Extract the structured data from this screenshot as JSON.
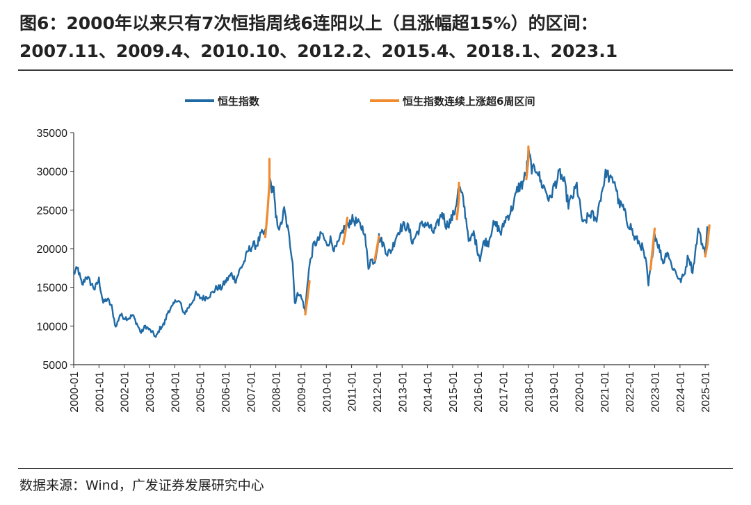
{
  "title": {
    "line1": "图6：2000年以来只有7次恒指周线6连阳以上（且涨幅超15%）的区间：",
    "line2": "2007.11、2009.4、2010.10、2012.2、2015.4、2018.1、2023.1"
  },
  "source": "数据来源：Wind，广发证券发展研究中心",
  "colors": {
    "main": "#1f6aa5",
    "highlight": "#f28a2e",
    "axis": "#333333"
  },
  "chart_data": {
    "type": "line",
    "title": "",
    "xlabel": "",
    "ylabel": "",
    "ylim": [
      5000,
      35000
    ],
    "yticks": [
      "5000",
      "10000",
      "15000",
      "20000",
      "25000",
      "30000",
      "35000"
    ],
    "xlim": [
      "2000-01",
      "2025-03"
    ],
    "xticks": [
      "2000-01",
      "2001-01",
      "2002-01",
      "2003-01",
      "2004-01",
      "2005-01",
      "2006-01",
      "2007-01",
      "2008-01",
      "2009-01",
      "2010-01",
      "2011-01",
      "2012-01",
      "2013-01",
      "2014-01",
      "2015-01",
      "2016-01",
      "2017-01",
      "2018-01",
      "2019-01",
      "2020-01",
      "2021-01",
      "2022-01",
      "2023-01",
      "2024-01",
      "2025-01"
    ],
    "legend": {
      "placement": "top",
      "items": [
        "恒生指数",
        "恒生指数连续上涨超6周区间"
      ]
    },
    "series": [
      {
        "name": "恒生指数",
        "points": [
          [
            "2000-01",
            16800
          ],
          [
            "2000-03",
            17400
          ],
          [
            "2000-05",
            15200
          ],
          [
            "2000-07",
            16500
          ],
          [
            "2000-09",
            15600
          ],
          [
            "2000-11",
            14800
          ],
          [
            "2001-01",
            16000
          ],
          [
            "2001-03",
            13000
          ],
          [
            "2001-05",
            13500
          ],
          [
            "2001-07",
            12500
          ],
          [
            "2001-09",
            9800
          ],
          [
            "2001-11",
            11500
          ],
          [
            "2002-01",
            11100
          ],
          [
            "2002-03",
            11000
          ],
          [
            "2002-05",
            11400
          ],
          [
            "2002-07",
            10300
          ],
          [
            "2002-09",
            9100
          ],
          [
            "2002-11",
            10000
          ],
          [
            "2003-01",
            9500
          ],
          [
            "2003-03",
            9000
          ],
          [
            "2003-04",
            8500
          ],
          [
            "2003-06",
            9700
          ],
          [
            "2003-08",
            10300
          ],
          [
            "2003-10",
            12000
          ],
          [
            "2003-12",
            12500
          ],
          [
            "2004-02",
            13500
          ],
          [
            "2004-04",
            12800
          ],
          [
            "2004-05",
            11500
          ],
          [
            "2004-07",
            12200
          ],
          [
            "2004-09",
            13000
          ],
          [
            "2004-11",
            14100
          ],
          [
            "2005-01",
            13700
          ],
          [
            "2005-03",
            13600
          ],
          [
            "2005-05",
            13900
          ],
          [
            "2005-07",
            14300
          ],
          [
            "2005-09",
            15000
          ],
          [
            "2005-11",
            14900
          ],
          [
            "2006-01",
            15700
          ],
          [
            "2006-04",
            16700
          ],
          [
            "2006-06",
            15900
          ],
          [
            "2006-08",
            17300
          ],
          [
            "2006-10",
            18300
          ],
          [
            "2006-12",
            19800
          ],
          [
            "2007-02",
            20400
          ],
          [
            "2007-04",
            20500
          ],
          [
            "2007-06",
            21800
          ],
          [
            "2007-08",
            22000
          ],
          [
            "2007-09",
            24500
          ],
          [
            "2007-10",
            28500
          ],
          [
            "2007-11",
            28000
          ],
          [
            "2007-12",
            27500
          ],
          [
            "2008-01",
            24000
          ],
          [
            "2008-03",
            22500
          ],
          [
            "2008-05",
            25000
          ],
          [
            "2008-07",
            22000
          ],
          [
            "2008-09",
            18500
          ],
          [
            "2008-10",
            13000
          ],
          [
            "2008-11",
            13800
          ],
          [
            "2008-12",
            14400
          ],
          [
            "2009-02",
            13000
          ],
          [
            "2009-03",
            11800
          ],
          [
            "2009-04",
            15500
          ],
          [
            "2009-05",
            17800
          ],
          [
            "2009-07",
            20500
          ],
          [
            "2009-09",
            21000
          ],
          [
            "2009-11",
            22000
          ],
          [
            "2010-01",
            20500
          ],
          [
            "2010-03",
            21200
          ],
          [
            "2010-05",
            19800
          ],
          [
            "2010-07",
            20800
          ],
          [
            "2010-09",
            22500
          ],
          [
            "2010-11",
            23000
          ],
          [
            "2011-01",
            23800
          ],
          [
            "2011-03",
            23500
          ],
          [
            "2011-05",
            23000
          ],
          [
            "2011-07",
            22400
          ],
          [
            "2011-09",
            17600
          ],
          [
            "2011-10",
            18500
          ],
          [
            "2011-12",
            18400
          ],
          [
            "2012-02",
            21500
          ],
          [
            "2012-04",
            20600
          ],
          [
            "2012-06",
            19400
          ],
          [
            "2012-08",
            19800
          ],
          [
            "2012-10",
            21500
          ],
          [
            "2012-12",
            22600
          ],
          [
            "2013-02",
            23000
          ],
          [
            "2013-04",
            22700
          ],
          [
            "2013-06",
            20800
          ],
          [
            "2013-08",
            22000
          ],
          [
            "2013-10",
            23000
          ],
          [
            "2013-12",
            23300
          ],
          [
            "2014-02",
            22800
          ],
          [
            "2014-04",
            22100
          ],
          [
            "2014-06",
            23200
          ],
          [
            "2014-08",
            24700
          ],
          [
            "2014-10",
            23000
          ],
          [
            "2014-12",
            23600
          ],
          [
            "2015-02",
            24800
          ],
          [
            "2015-04",
            28000
          ],
          [
            "2015-06",
            26300
          ],
          [
            "2015-07",
            24500
          ],
          [
            "2015-09",
            20800
          ],
          [
            "2015-11",
            22000
          ],
          [
            "2016-01",
            19700
          ],
          [
            "2016-02",
            18800
          ],
          [
            "2016-04",
            21000
          ],
          [
            "2016-06",
            20800
          ],
          [
            "2016-08",
            23000
          ],
          [
            "2016-10",
            23000
          ],
          [
            "2016-12",
            22000
          ],
          [
            "2017-02",
            23800
          ],
          [
            "2017-04",
            24500
          ],
          [
            "2017-06",
            25800
          ],
          [
            "2017-08",
            27900
          ],
          [
            "2017-10",
            28300
          ],
          [
            "2017-12",
            29800
          ],
          [
            "2018-01",
            32500
          ],
          [
            "2018-03",
            30000
          ],
          [
            "2018-05",
            30500
          ],
          [
            "2018-07",
            28500
          ],
          [
            "2018-09",
            27700
          ],
          [
            "2018-11",
            26200
          ],
          [
            "2019-01",
            27900
          ],
          [
            "2019-04",
            29800
          ],
          [
            "2019-06",
            28500
          ],
          [
            "2019-08",
            25700
          ],
          [
            "2019-10",
            26700
          ],
          [
            "2019-12",
            28200
          ],
          [
            "2020-01",
            26300
          ],
          [
            "2020-03",
            23000
          ],
          [
            "2020-05",
            24000
          ],
          [
            "2020-07",
            24600
          ],
          [
            "2020-09",
            23500
          ],
          [
            "2020-11",
            26300
          ],
          [
            "2021-02",
            30000
          ],
          [
            "2021-04",
            28800
          ],
          [
            "2021-06",
            28800
          ],
          [
            "2021-08",
            25800
          ],
          [
            "2021-10",
            25300
          ],
          [
            "2021-12",
            23400
          ],
          [
            "2022-02",
            22700
          ],
          [
            "2022-03",
            21500
          ],
          [
            "2022-05",
            21000
          ],
          [
            "2022-07",
            20200
          ],
          [
            "2022-09",
            18000
          ],
          [
            "2022-10",
            15200
          ],
          [
            "2023-01",
            21900
          ],
          [
            "2023-03",
            20200
          ],
          [
            "2023-05",
            18200
          ],
          [
            "2023-07",
            19800
          ],
          [
            "2023-09",
            17800
          ],
          [
            "2023-11",
            17000
          ],
          [
            "2024-01",
            15800
          ],
          [
            "2024-03",
            16600
          ],
          [
            "2024-05",
            19200
          ],
          [
            "2024-07",
            17000
          ],
          [
            "2024-09",
            21000
          ],
          [
            "2024-10",
            22700
          ],
          [
            "2024-12",
            20000
          ],
          [
            "2025-01",
            19500
          ],
          [
            "2025-02",
            22900
          ]
        ]
      },
      {
        "name": "恒生指数连续上涨超6周区间",
        "segments": [
          [
            [
              "2007-08",
              21500
            ],
            [
              "2007-09",
              24500
            ],
            [
              "2007-10",
              28500
            ],
            [
              "2007-10",
              31600
            ]
          ],
          [
            [
              "2009-03",
              11500
            ],
            [
              "2009-04",
              13500
            ],
            [
              "2009-05",
              15800
            ]
          ],
          [
            [
              "2010-09",
              20600
            ],
            [
              "2010-10",
              22000
            ],
            [
              "2010-11",
              24000
            ]
          ],
          [
            [
              "2011-12",
              18500
            ],
            [
              "2012-01",
              20000
            ],
            [
              "2012-02",
              21600
            ]
          ],
          [
            [
              "2015-03",
              23800
            ],
            [
              "2015-04",
              26500
            ],
            [
              "2015-04",
              28500
            ]
          ],
          [
            [
              "2017-12",
              29000
            ],
            [
              "2018-01",
              31500
            ],
            [
              "2018-01",
              33200
            ]
          ],
          [
            [
              "2022-11",
              17300
            ],
            [
              "2022-12",
              20000
            ],
            [
              "2023-01",
              22600
            ]
          ],
          [
            [
              "2025-01",
              19000
            ],
            [
              "2025-02",
              20500
            ],
            [
              "2025-03",
              23000
            ]
          ]
        ]
      }
    ]
  }
}
